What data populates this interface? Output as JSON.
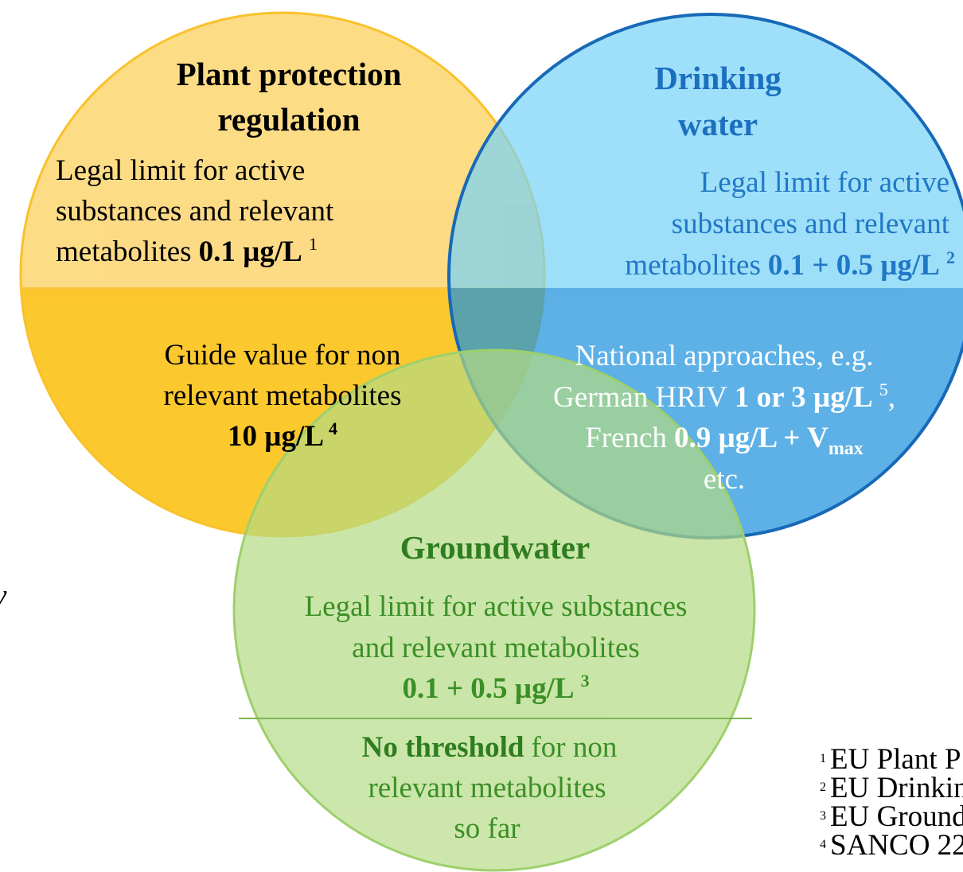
{
  "stray_text": "y",
  "plant_protection": {
    "title": [
      "Plant protection",
      "regulation"
    ],
    "legal_limit": {
      "lines": [
        "Legal limit for active",
        "substances and relevant"
      ],
      "last_line": "metabolites",
      "value": "0.1 µg/L",
      "note": "1"
    },
    "guide_value": {
      "lines": [
        "Guide value for non",
        "relevant metabolites"
      ],
      "value": "10 µg/L",
      "note": "4"
    }
  },
  "drinking_water": {
    "title": [
      "Drinking",
      "water"
    ],
    "legal_limit": {
      "lines": [
        "Legal limit for active",
        "substances and relevant"
      ],
      "last_line": "metabolites",
      "value": "0.1 + 0.5 µg/L",
      "note": "2"
    },
    "national": {
      "line1": "National approaches, e.g.",
      "line2": {
        "text": "German HRIV",
        "value": "1 or 3 µg/L",
        "note": "5",
        "tail": ","
      },
      "line3": {
        "text": "French",
        "value": "0.9 µg/L + V",
        "sub": "max"
      },
      "line4": "etc."
    }
  },
  "groundwater": {
    "title": "Groundwater",
    "legal_limit": {
      "lines": [
        "Legal limit for active substances",
        "and relevant metabolites"
      ],
      "value": "0.1 + 0.5 µg/L",
      "note": "3"
    },
    "no_threshold": {
      "bold": "No threshold",
      "rest": "for non",
      "lines": [
        "relevant metabolites",
        "so far"
      ]
    }
  },
  "footnotes": [
    {
      "mark": "1",
      "text": "EU Plant P"
    },
    {
      "mark": "2",
      "text": "EU Drinkin"
    },
    {
      "mark": "3",
      "text": "EU Ground"
    },
    {
      "mark": "4",
      "text": "SANCO 22"
    }
  ]
}
